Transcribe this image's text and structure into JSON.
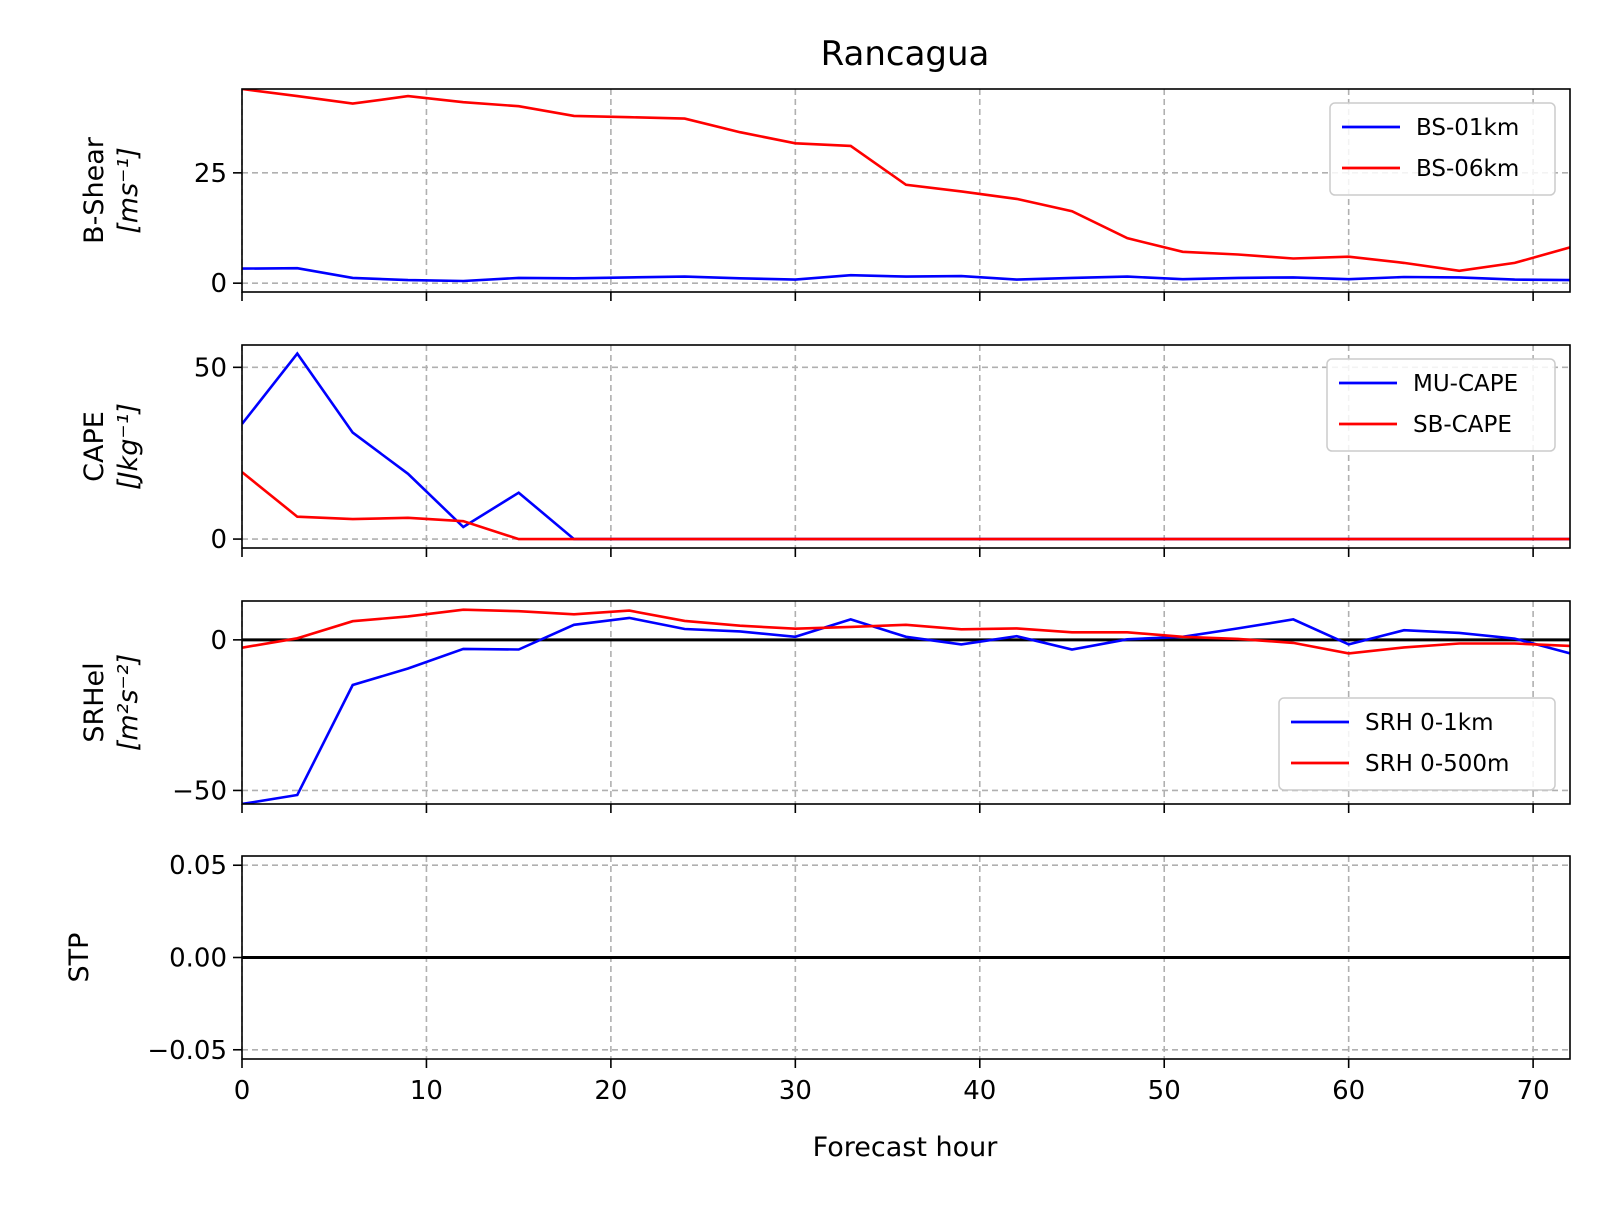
{
  "title": "Rancagua",
  "xlabel": "Forecast hour",
  "x_ticks": [
    0,
    10,
    20,
    30,
    40,
    50,
    60,
    70
  ],
  "xlim": [
    0,
    72
  ],
  "chart_data": [
    {
      "type": "line",
      "panel": "B-Shear",
      "ylabel_line1": "B-Shear",
      "ylabel_line2": "[ms⁻¹]",
      "xlim": [
        0,
        72
      ],
      "ylim": [
        -2,
        44
      ],
      "y_ticks": [
        0,
        25
      ],
      "y_tick_labels": [
        "0",
        "25"
      ],
      "grid": true,
      "legend_position": "upper right",
      "x": [
        0,
        3,
        6,
        9,
        12,
        15,
        18,
        21,
        24,
        27,
        30,
        33,
        36,
        39,
        42,
        45,
        48,
        51,
        54,
        57,
        60,
        63,
        66,
        69,
        72
      ],
      "series": [
        {
          "name": "BS-01km",
          "color": "#0000ff",
          "values": [
            3.3,
            3.4,
            1.2,
            0.7,
            0.5,
            1.2,
            1.1,
            1.3,
            1.5,
            1.1,
            0.8,
            1.8,
            1.5,
            1.6,
            0.8,
            1.2,
            1.5,
            0.9,
            1.2,
            1.3,
            0.9,
            1.4,
            1.3,
            0.8,
            0.7
          ]
        },
        {
          "name": "BS-06km",
          "color": "#ff0000",
          "values": [
            44.0,
            42.4,
            40.7,
            42.4,
            41.0,
            40.1,
            37.9,
            37.6,
            37.3,
            34.2,
            31.7,
            31.1,
            22.3,
            20.8,
            19.1,
            16.3,
            10.2,
            7.1,
            6.5,
            5.6,
            6.0,
            4.6,
            2.8,
            4.6,
            8.1
          ]
        }
      ]
    },
    {
      "type": "line",
      "panel": "CAPE",
      "ylabel_line1": "CAPE",
      "ylabel_line2": "[Jkg⁻¹]",
      "xlim": [
        0,
        72
      ],
      "ylim": [
        -2.6,
        56.5
      ],
      "y_ticks": [
        0,
        50
      ],
      "y_tick_labels": [
        "0",
        "50"
      ],
      "grid": true,
      "legend_position": "upper right",
      "x": [
        0,
        3,
        6,
        9,
        12,
        15,
        18,
        21,
        24,
        27,
        30,
        33,
        36,
        39,
        42,
        45,
        48,
        51,
        54,
        57,
        60,
        63,
        66,
        69,
        72
      ],
      "series": [
        {
          "name": "MU-CAPE",
          "color": "#0000ff",
          "values": [
            33.5,
            54.0,
            31.0,
            19.0,
            3.5,
            13.5,
            0,
            0,
            0,
            0,
            0,
            0,
            0,
            0,
            0,
            0,
            0,
            0,
            0,
            0,
            0,
            0,
            0,
            0,
            0
          ]
        },
        {
          "name": "SB-CAPE",
          "color": "#ff0000",
          "values": [
            19.5,
            6.5,
            5.8,
            6.2,
            5.2,
            0,
            0,
            0,
            0,
            0,
            0,
            0,
            0,
            0,
            0,
            0,
            0,
            0,
            0,
            0,
            0,
            0,
            0,
            0,
            0
          ]
        }
      ]
    },
    {
      "type": "line",
      "panel": "SRHel",
      "ylabel_line1": "SRHel",
      "ylabel_line2": "[m²s⁻²]",
      "xlim": [
        0,
        72
      ],
      "ylim": [
        -54.5,
        12.9
      ],
      "y_ticks": [
        0,
        -50
      ],
      "y_tick_labels": [
        "0",
        "−50"
      ],
      "zero_line": true,
      "grid": true,
      "legend_position": "lower right",
      "x": [
        0,
        3,
        6,
        9,
        12,
        15,
        18,
        21,
        24,
        27,
        30,
        33,
        36,
        39,
        42,
        45,
        48,
        51,
        54,
        57,
        60,
        63,
        66,
        69,
        72
      ],
      "series": [
        {
          "name": "SRH 0-1km",
          "color": "#0000ff",
          "values": [
            -54.5,
            -51.5,
            -15.0,
            -9.5,
            -3.0,
            -3.2,
            5.0,
            7.3,
            3.6,
            2.8,
            1.0,
            6.8,
            1.0,
            -1.5,
            1.2,
            -3.2,
            0.2,
            1.0,
            3.8,
            6.8,
            -1.5,
            3.2,
            2.3,
            0.4,
            -4.5
          ]
        },
        {
          "name": "SRH 0-500m",
          "color": "#ff0000",
          "values": [
            -2.6,
            0.5,
            6.2,
            7.8,
            10.0,
            9.5,
            8.5,
            9.7,
            6.3,
            4.7,
            3.7,
            4.3,
            5.0,
            3.5,
            3.8,
            2.5,
            2.5,
            1.0,
            0.3,
            -1.0,
            -4.5,
            -2.5,
            -1.2,
            -1.2,
            -2.0
          ]
        }
      ]
    },
    {
      "type": "line",
      "panel": "STP",
      "ylabel_line1": "STP",
      "ylabel_line2": "",
      "xlim": [
        0,
        72
      ],
      "ylim": [
        -0.055,
        0.055
      ],
      "y_ticks": [
        0.05,
        0.0,
        -0.05
      ],
      "y_tick_labels": [
        "0.05",
        "0.00",
        "−0.05"
      ],
      "grid": true,
      "x": [
        0,
        3,
        6,
        9,
        12,
        15,
        18,
        21,
        24,
        27,
        30,
        33,
        36,
        39,
        42,
        45,
        48,
        51,
        54,
        57,
        60,
        63,
        66,
        69,
        72
      ],
      "series": [
        {
          "color": "#000000",
          "values": [
            0,
            0,
            0,
            0,
            0,
            0,
            0,
            0,
            0,
            0,
            0,
            0,
            0,
            0,
            0,
            0,
            0,
            0,
            0,
            0,
            0,
            0,
            0,
            0,
            0
          ]
        }
      ]
    }
  ]
}
